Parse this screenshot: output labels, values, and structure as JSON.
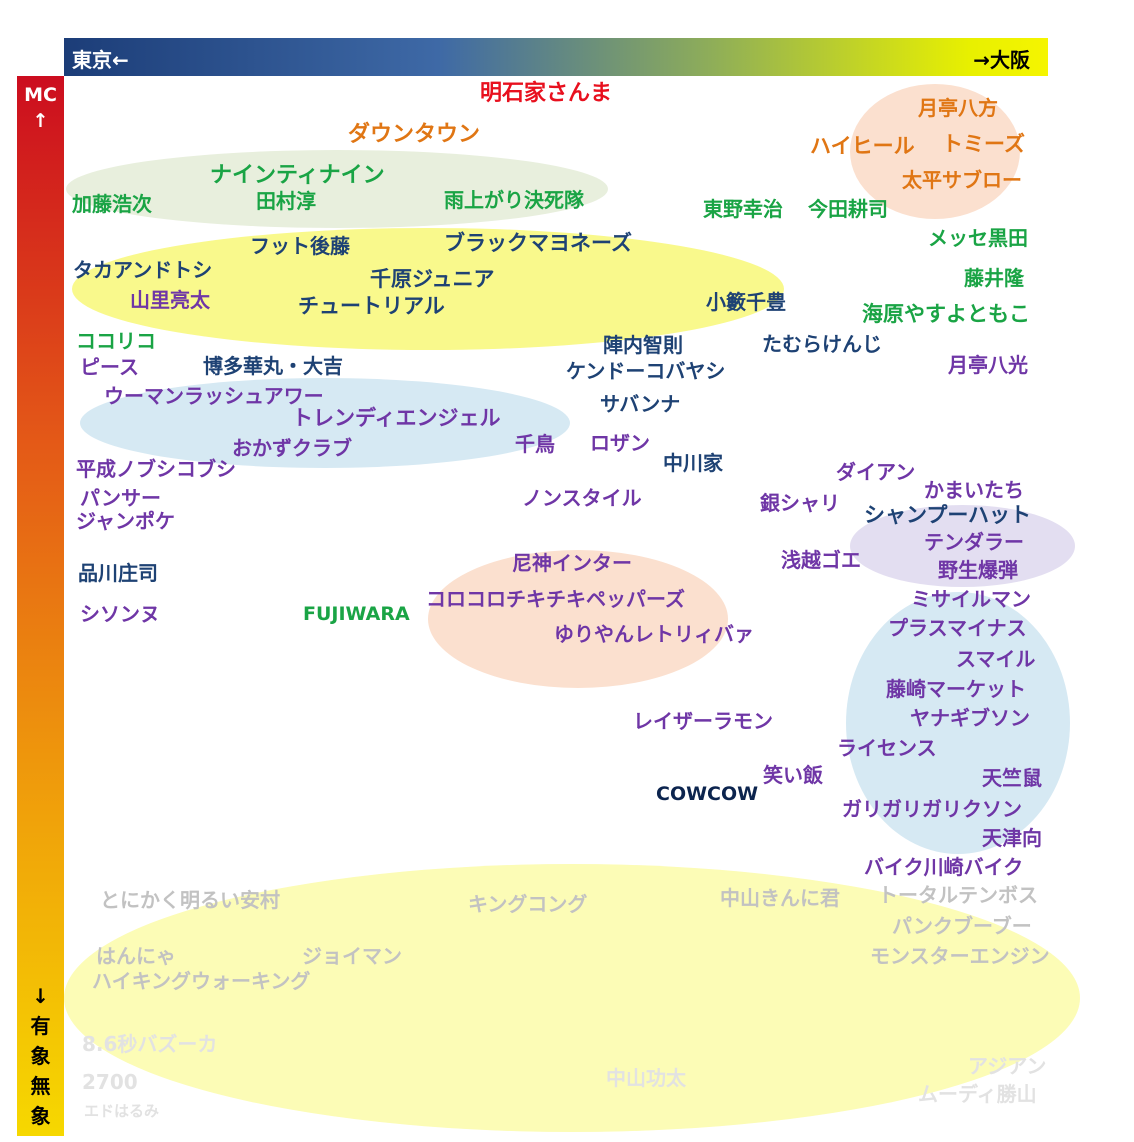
{
  "axes": {
    "left_label": "東京←",
    "right_label": "→大阪",
    "top_label": "MC\n↑",
    "bottom_label": "↓\n有\n象\n無\n象"
  },
  "colors": {
    "red": "#e8101e",
    "orange": "#e07614",
    "green": "#1aa445",
    "navy": "#1e4274",
    "purple": "#6f36a6",
    "dark": "#0c244e",
    "gray": "#c2c2c2",
    "faint": "#e2e2e2",
    "ellipse_orange": "#fbe0cf",
    "ellipse_sage": "#e8efdd",
    "ellipse_yellow": "#f9f98c",
    "ellipse_blue": "#d6e9f3",
    "ellipse_lavender": "#e3def1",
    "ellipse_paleyellow": "#fcfcb6"
  },
  "names": [
    "明石家さんま",
    "月亭八方",
    "ダウンタウン",
    "ハイヒール",
    "トミーズ",
    "太平サブロー",
    "ナインティナイン",
    "加藤浩次",
    "田村淳",
    "雨上がり決死隊",
    "東野幸治",
    "今田耕司",
    "メッセ黒田",
    "フット後藤",
    "ブラックマヨネーズ",
    "タカアンドトシ",
    "千原ジュニア",
    "藤井隆",
    "山里亮太",
    "チュートリアル",
    "小籔千豊",
    "海原やすよともこ",
    "ココリコ",
    "陣内智則",
    "たむらけんじ",
    "ピース",
    "博多華丸・大吉",
    "ケンドーコバヤシ",
    "月亭八光",
    "ウーマンラッシュアワー",
    "サバンナ",
    "トレンディエンジェル",
    "千鳥",
    "ロザン",
    "おかずクラブ",
    "中川家",
    "平成ノブシコブシ",
    "ダイアン",
    "かまいたち",
    "パンサー",
    "ノンスタイル",
    "銀シャリ",
    "ジャンポケ",
    "シャンプーハット",
    "テンダラー",
    "尼神インター",
    "浅越ゴエ",
    "品川庄司",
    "野生爆弾",
    "コロコロチキチキペッパーズ",
    "ミサイルマン",
    "シソンヌ",
    "FUJIWARA",
    "ゆりやんレトリィバァ",
    "プラスマイナス",
    "スマイル",
    "藤崎マーケット",
    "レイザーラモン",
    "ヤナギブソン",
    "ライセンス",
    "笑い飯",
    "天竺鼠",
    "COWCOW",
    "ガリガリガリクソン",
    "天津向",
    "バイク川崎バイク",
    "とにかく明るい安村",
    "キングコング",
    "中山きんに君",
    "トータルテンボス",
    "パンクブーブー",
    "はんにゃ",
    "ジョイマン",
    "モンスターエンジン",
    "ハイキングウォーキング",
    "8.6秒バズーカ",
    "アジアン",
    "2700",
    "中山功太",
    "ムーディ勝山",
    "エドはるみ"
  ]
}
